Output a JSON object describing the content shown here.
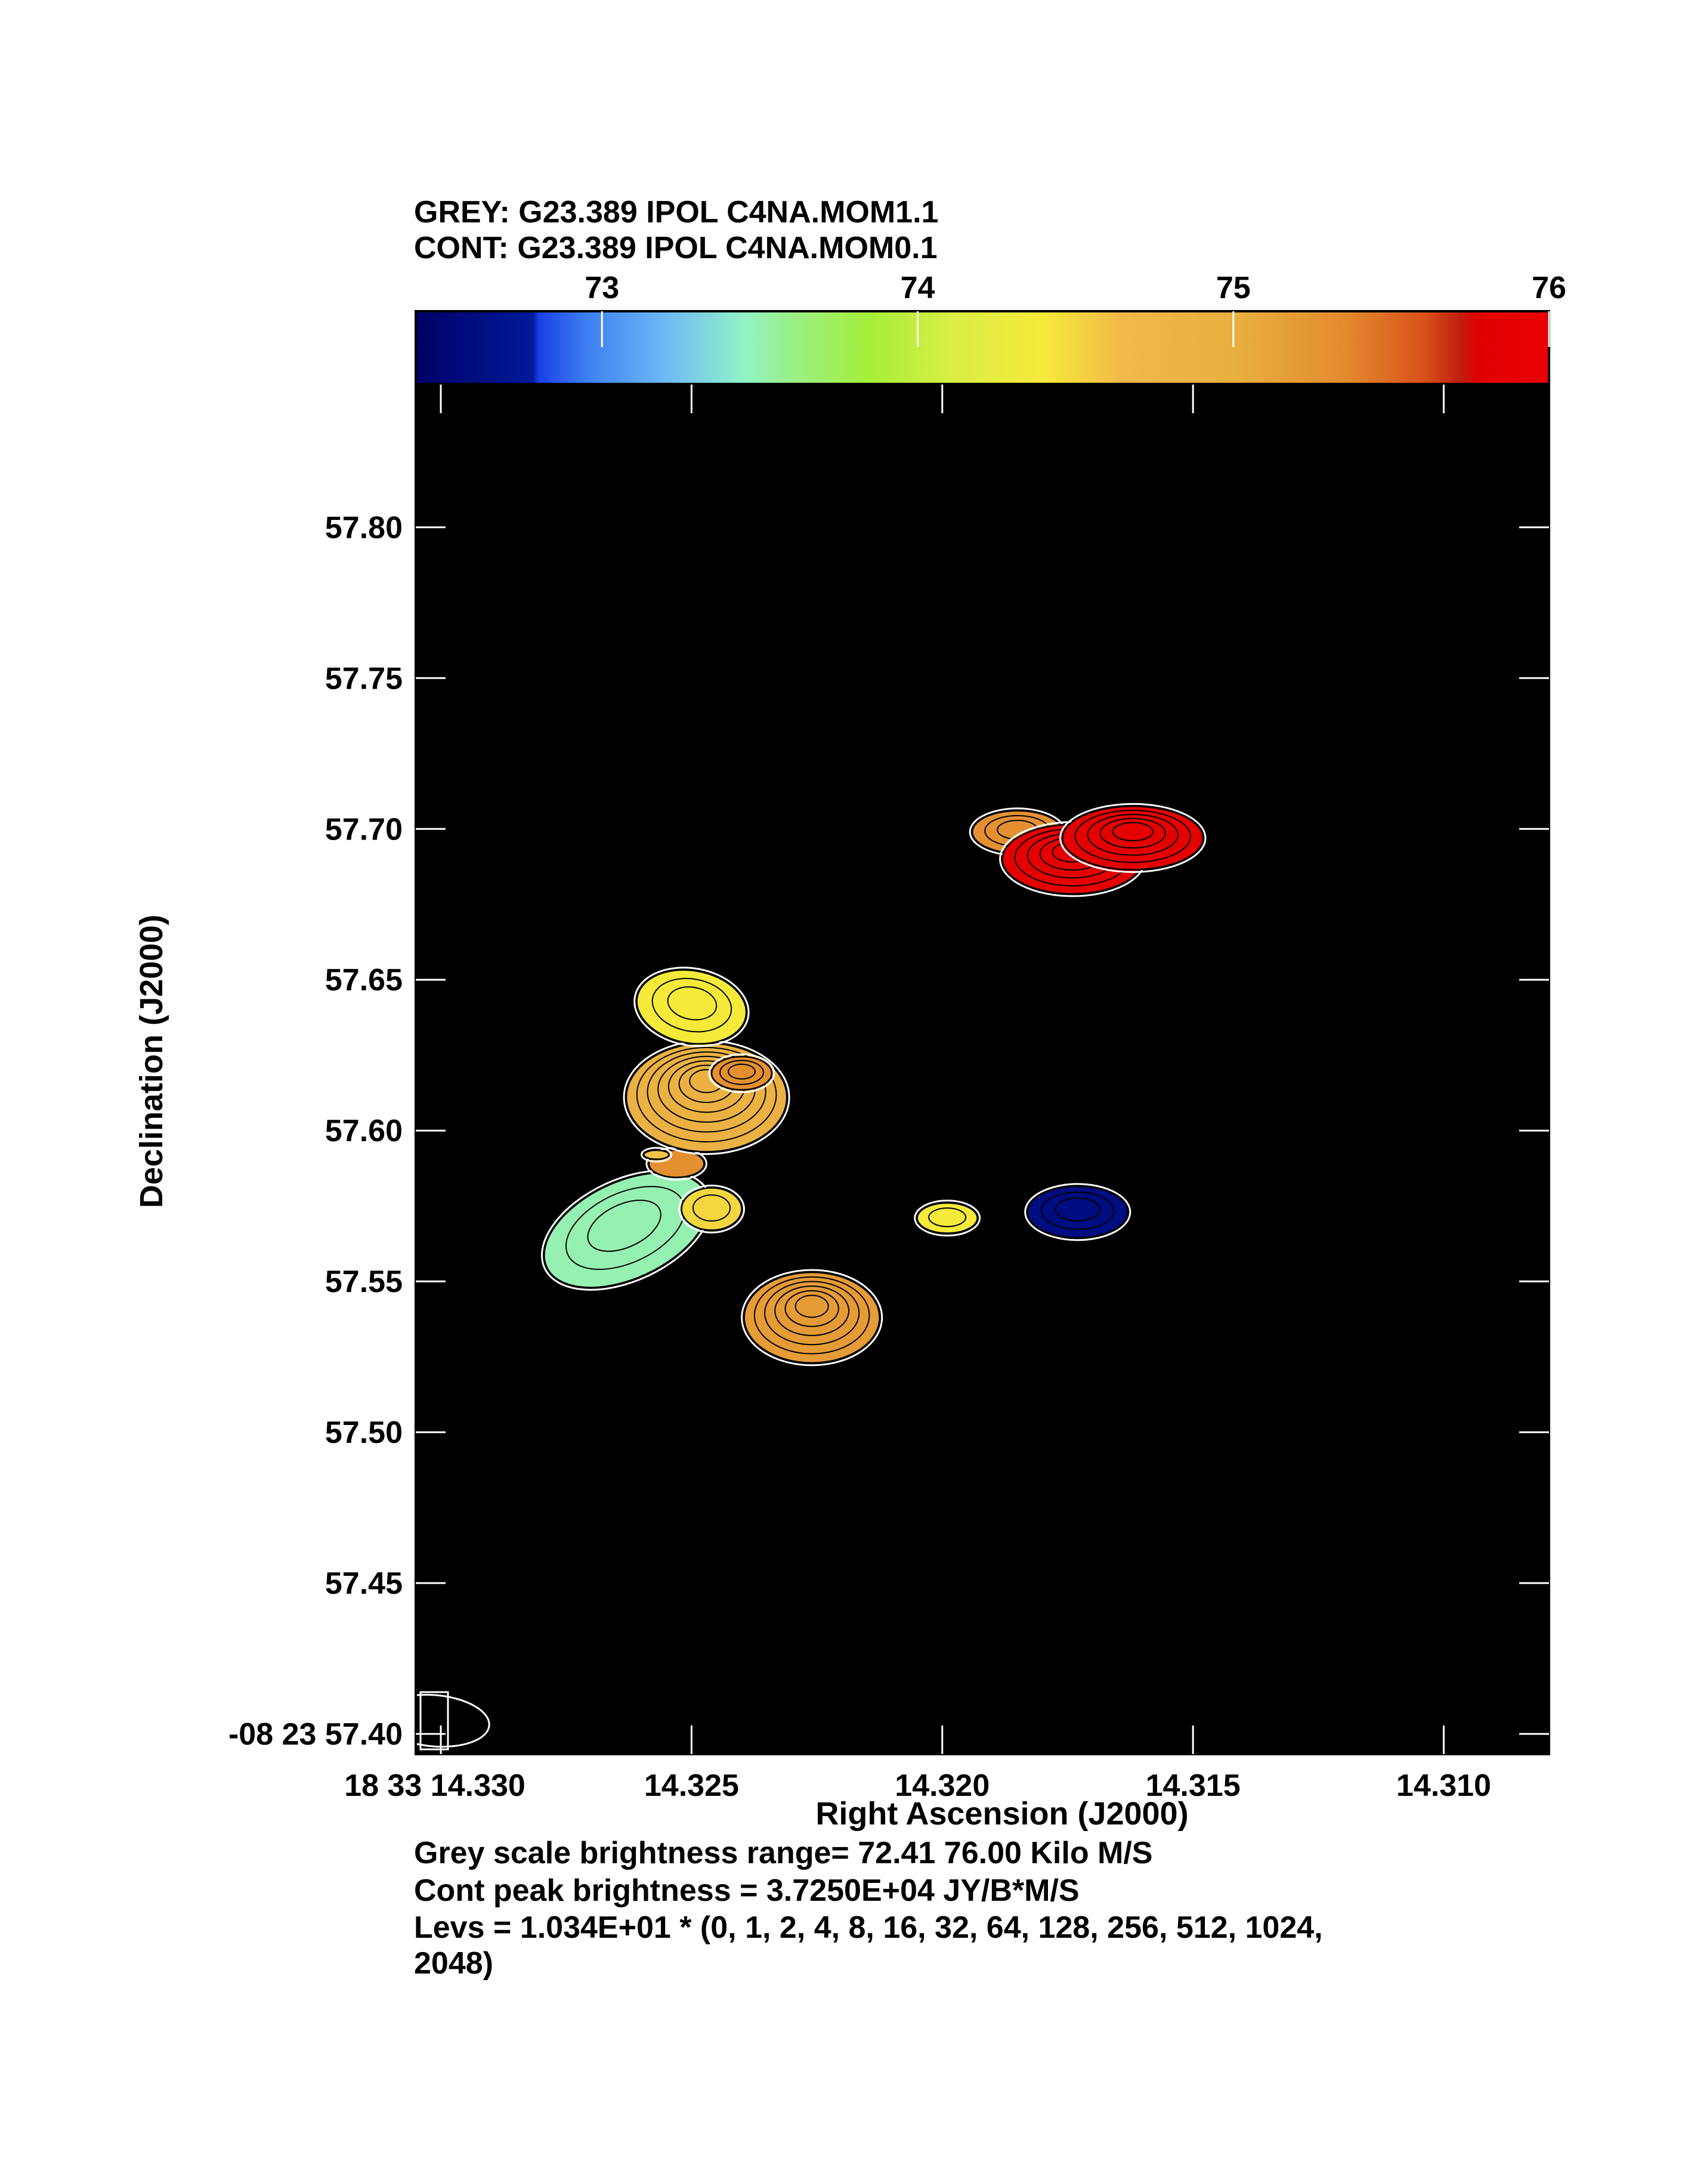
{
  "header": {
    "grey_line": "GREY: G23.389  IPOL  C4NA.MOM1.1",
    "cont_line": "CONT: G23.389  IPOL  C4NA.MOM0.1"
  },
  "colorbar": {
    "ticks": [
      "73",
      "74",
      "75",
      "76"
    ],
    "tick_values": [
      73,
      74,
      75,
      76
    ],
    "range": [
      72.41,
      76.0
    ],
    "stops": [
      {
        "v": 72.41,
        "c": "#000066"
      },
      {
        "v": 72.78,
        "c": "#001a99"
      },
      {
        "v": 72.8,
        "c": "#1a3fe6"
      },
      {
        "v": 72.95,
        "c": "#3d7ff2"
      },
      {
        "v": 73.2,
        "c": "#6fb9f5"
      },
      {
        "v": 73.45,
        "c": "#92f2c6"
      },
      {
        "v": 73.6,
        "c": "#9af088"
      },
      {
        "v": 73.85,
        "c": "#a6ee3a"
      },
      {
        "v": 74.1,
        "c": "#d9ee45"
      },
      {
        "v": 74.4,
        "c": "#f5ea3a"
      },
      {
        "v": 74.65,
        "c": "#f2b84a"
      },
      {
        "v": 75.0,
        "c": "#e8b040"
      },
      {
        "v": 75.35,
        "c": "#e38b2e"
      },
      {
        "v": 75.6,
        "c": "#d9531c"
      },
      {
        "v": 75.72,
        "c": "#c01d10"
      },
      {
        "v": 75.78,
        "c": "#e00000"
      },
      {
        "v": 76.0,
        "c": "#ea0000"
      }
    ]
  },
  "axes": {
    "ylabel": "Declination (J2000)",
    "xlabel": "Right Ascension (J2000)"
  },
  "chart_data": {
    "type": "heatmap",
    "title": "",
    "xlabel": "Right Ascension (J2000)",
    "ylabel": "Declination (J2000)",
    "xlim": [
      14.3305,
      14.3079
    ],
    "ylim": [
      57.8473,
      57.3933
    ],
    "x_ticks": [
      14.33,
      14.325,
      14.32,
      14.315,
      14.31
    ],
    "x_tick_labels": [
      "18 33 14.330",
      "14.325",
      "14.320",
      "14.315",
      "14.310"
    ],
    "y_ticks": [
      57.4,
      57.45,
      57.5,
      57.55,
      57.6,
      57.65,
      57.7,
      57.75,
      57.8
    ],
    "y_tick_labels": [
      "-08 23 57.40",
      "57.45",
      "57.50",
      "57.55",
      "57.60",
      "57.65",
      "57.70",
      "57.75",
      "57.80"
    ],
    "colorbar_range_km_s": [
      72.41,
      76.0
    ],
    "sources": [
      {
        "ra": 14.3226,
        "dec": 57.538,
        "velocity": 75.2,
        "major": 0.03,
        "minor": 0.0027,
        "pa": 0,
        "ncontours": 6
      },
      {
        "ra": 14.3263,
        "dec": 57.567,
        "velocity": 73.5,
        "major": 0.032,
        "minor": 0.0035,
        "pa": -25,
        "ncontours": 3
      },
      {
        "ra": 14.3246,
        "dec": 57.574,
        "velocity": 74.5,
        "major": 0.014,
        "minor": 0.0012,
        "pa": 0,
        "ncontours": 2
      },
      {
        "ra": 14.3199,
        "dec": 57.571,
        "velocity": 74.4,
        "major": 0.01,
        "minor": 0.0012,
        "pa": 0,
        "ncontours": 2
      },
      {
        "ra": 14.3173,
        "dec": 57.573,
        "velocity": 72.6,
        "major": 0.017,
        "minor": 0.002,
        "pa": 0,
        "ncontours": 3
      },
      {
        "ra": 14.3253,
        "dec": 57.589,
        "velocity": 75.3,
        "major": 0.009,
        "minor": 0.0011,
        "pa": 0,
        "ncontours": 1
      },
      {
        "ra": 14.3257,
        "dec": 57.592,
        "velocity": 74.6,
        "major": 0.003,
        "minor": 0.0005,
        "pa": 0,
        "ncontours": 1
      },
      {
        "ra": 14.3247,
        "dec": 57.611,
        "velocity": 74.9,
        "major": 0.036,
        "minor": 0.0032,
        "pa": 0,
        "ncontours": 7
      },
      {
        "ra": 14.324,
        "dec": 57.619,
        "velocity": 75.3,
        "major": 0.011,
        "minor": 0.0012,
        "pa": 0,
        "ncontours": 3
      },
      {
        "ra": 14.325,
        "dec": 57.641,
        "velocity": 74.4,
        "major": 0.024,
        "minor": 0.0022,
        "pa": 10,
        "ncontours": 3
      },
      {
        "ra": 14.3185,
        "dec": 57.699,
        "velocity": 75.3,
        "major": 0.014,
        "minor": 0.0018,
        "pa": 0,
        "ncontours": 3
      },
      {
        "ra": 14.3174,
        "dec": 57.69,
        "velocity": 75.9,
        "major": 0.023,
        "minor": 0.0028,
        "pa": 0,
        "ncontours": 5
      },
      {
        "ra": 14.3162,
        "dec": 57.697,
        "velocity": 75.9,
        "major": 0.021,
        "minor": 0.0028,
        "pa": 0,
        "ncontours": 5
      }
    ],
    "beam": {
      "major": 0.017,
      "minor": 0.0022,
      "pa": 5
    }
  },
  "footer": {
    "line1": "Grey scale brightness range= 72.41 76.00 Kilo M/S",
    "line2": "Cont peak brightness = 3.7250E+04 JY/B*M/S",
    "line3": "Levs = 1.034E+01 * (0, 1, 2, 4, 8, 16, 32, 64, 128, 256, 512, 1024,",
    "line4": "2048)"
  },
  "colors": {
    "plot_background": "#000000",
    "contour": "#000000",
    "outline": "#ffffff",
    "frame": "#000000"
  }
}
